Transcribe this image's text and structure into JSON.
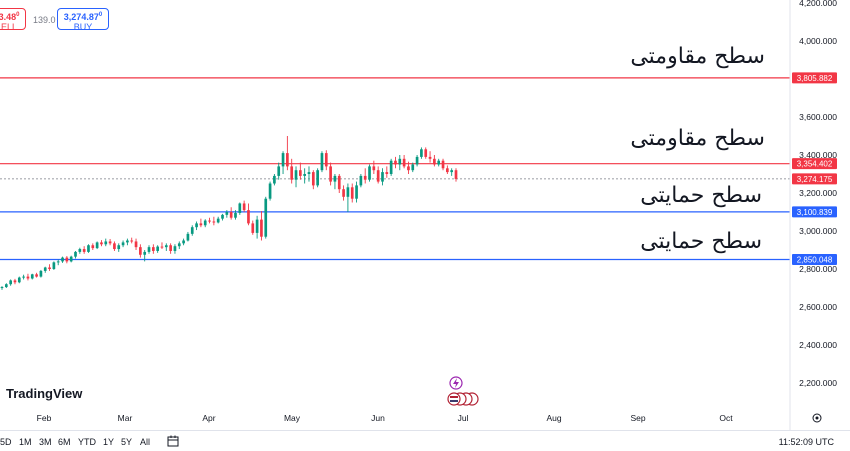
{
  "topbar": {
    "sell_value": "3.48",
    "sell_sup": "0",
    "sell_label": "ELL",
    "spread": "139.0",
    "buy_value": "3,274.87",
    "buy_sup": "0",
    "buy_label": "BUY"
  },
  "annotations": {
    "resistance_1": "سطح مقاومتی",
    "resistance_2": "سطح مقاومتی",
    "support_1": "سطح حمایتی",
    "support_2": "سطح حمایتی"
  },
  "logo": "TradingView",
  "bottombar": {
    "ranges": [
      "5D",
      "1M",
      "3M",
      "6M",
      "YTD",
      "1Y",
      "5Y",
      "All"
    ],
    "clock": "11:52:09 UTC"
  },
  "colors": {
    "up": "#089981",
    "down": "#f23645",
    "resistance": "#f23645",
    "support": "#2962ff",
    "current": "#f23645"
  },
  "chart_data": {
    "type": "candlestick",
    "ylim": [
      2150,
      4250
    ],
    "y_ticks": [
      "2,200.000",
      "2,400.000",
      "2,600.000",
      "2,800.000",
      "3,000.000",
      "3,200.000",
      "3,400.000",
      "3,600.000",
      "3,800.000",
      "4,000.000",
      "4,200.000"
    ],
    "y_tick_values": [
      2200,
      2400,
      2600,
      2800,
      3000,
      3200,
      3400,
      3600,
      3800,
      4000,
      4200
    ],
    "x_labels": [
      "Feb",
      "Mar",
      "Apr",
      "May",
      "Jun",
      "Jul",
      "Aug",
      "Sep",
      "Oct"
    ],
    "levels": [
      {
        "name": "resistance-2",
        "value": 3805.882,
        "label": "3,805.882",
        "kind": "resistance"
      },
      {
        "name": "resistance-1",
        "value": 3354.402,
        "label": "3,354.402",
        "kind": "resistance"
      },
      {
        "name": "current-price",
        "value": 3274.175,
        "label": "3,274.175",
        "kind": "current"
      },
      {
        "name": "support-1",
        "value": 3100.839,
        "label": "3,100.839",
        "kind": "support"
      },
      {
        "name": "support-2",
        "value": 2850.048,
        "label": "2,850.048",
        "kind": "support"
      }
    ],
    "candles": [
      [
        2700,
        2710,
        2690,
        2705
      ],
      [
        2705,
        2725,
        2700,
        2720
      ],
      [
        2720,
        2745,
        2712,
        2740
      ],
      [
        2740,
        2748,
        2720,
        2730
      ],
      [
        2730,
        2760,
        2725,
        2755
      ],
      [
        2755,
        2770,
        2745,
        2760
      ],
      [
        2760,
        2775,
        2740,
        2750
      ],
      [
        2750,
        2775,
        2745,
        2772
      ],
      [
        2772,
        2780,
        2755,
        2760
      ],
      [
        2760,
        2795,
        2755,
        2790
      ],
      [
        2790,
        2812,
        2780,
        2808
      ],
      [
        2808,
        2825,
        2790,
        2800
      ],
      [
        2800,
        2840,
        2795,
        2835
      ],
      [
        2835,
        2850,
        2820,
        2840
      ],
      [
        2840,
        2865,
        2832,
        2860
      ],
      [
        2860,
        2868,
        2830,
        2840
      ],
      [
        2840,
        2870,
        2835,
        2865
      ],
      [
        2865,
        2895,
        2855,
        2890
      ],
      [
        2890,
        2912,
        2880,
        2905
      ],
      [
        2905,
        2920,
        2880,
        2890
      ],
      [
        2890,
        2930,
        2885,
        2925
      ],
      [
        2925,
        2935,
        2900,
        2910
      ],
      [
        2910,
        2945,
        2905,
        2940
      ],
      [
        2940,
        2952,
        2920,
        2930
      ],
      [
        2930,
        2960,
        2920,
        2945
      ],
      [
        2945,
        2958,
        2925,
        2935
      ],
      [
        2935,
        2945,
        2895,
        2905
      ],
      [
        2905,
        2935,
        2890,
        2925
      ],
      [
        2925,
        2950,
        2915,
        2940
      ],
      [
        2940,
        2960,
        2925,
        2950
      ],
      [
        2950,
        2965,
        2935,
        2945
      ],
      [
        2945,
        2960,
        2900,
        2915
      ],
      [
        2915,
        2930,
        2860,
        2875
      ],
      [
        2875,
        2900,
        2840,
        2890
      ],
      [
        2890,
        2925,
        2880,
        2915
      ],
      [
        2915,
        2930,
        2880,
        2895
      ],
      [
        2895,
        2925,
        2885,
        2918
      ],
      [
        2918,
        2940,
        2905,
        2915
      ],
      [
        2915,
        2935,
        2895,
        2925
      ],
      [
        2925,
        2935,
        2880,
        2895
      ],
      [
        2895,
        2930,
        2880,
        2920
      ],
      [
        2920,
        2945,
        2905,
        2935
      ],
      [
        2935,
        2960,
        2925,
        2950
      ],
      [
        2950,
        2995,
        2945,
        2985
      ],
      [
        2985,
        3030,
        2975,
        3020
      ],
      [
        3020,
        3050,
        3005,
        3040
      ],
      [
        3040,
        3065,
        3020,
        3030
      ],
      [
        3030,
        3062,
        3020,
        3055
      ],
      [
        3055,
        3070,
        3040,
        3050
      ],
      [
        3050,
        3075,
        3030,
        3045
      ],
      [
        3045,
        3075,
        3040,
        3065
      ],
      [
        3065,
        3090,
        3055,
        3085
      ],
      [
        3085,
        3110,
        3070,
        3100
      ],
      [
        3100,
        3125,
        3060,
        3070
      ],
      [
        3070,
        3110,
        3060,
        3095
      ],
      [
        3095,
        3150,
        3085,
        3145
      ],
      [
        3145,
        3160,
        3100,
        3110
      ],
      [
        3110,
        3145,
        3030,
        3040
      ],
      [
        3040,
        3055,
        2980,
        2990
      ],
      [
        2990,
        3080,
        2960,
        3060
      ],
      [
        3060,
        3105,
        2950,
        2970
      ],
      [
        2970,
        3180,
        2960,
        3170
      ],
      [
        3170,
        3260,
        3160,
        3250
      ],
      [
        3250,
        3300,
        3240,
        3290
      ],
      [
        3290,
        3360,
        3270,
        3340
      ],
      [
        3340,
        3420,
        3300,
        3410
      ],
      [
        3410,
        3500,
        3320,
        3340
      ],
      [
        3340,
        3380,
        3250,
        3270
      ],
      [
        3270,
        3340,
        3230,
        3320
      ],
      [
        3320,
        3360,
        3270,
        3290
      ],
      [
        3290,
        3330,
        3250,
        3300
      ],
      [
        3300,
        3340,
        3260,
        3310
      ],
      [
        3310,
        3320,
        3220,
        3240
      ],
      [
        3240,
        3330,
        3230,
        3320
      ],
      [
        3320,
        3420,
        3310,
        3410
      ],
      [
        3410,
        3425,
        3320,
        3340
      ],
      [
        3340,
        3360,
        3240,
        3260
      ],
      [
        3260,
        3300,
        3220,
        3290
      ],
      [
        3290,
        3300,
        3200,
        3220
      ],
      [
        3220,
        3240,
        3160,
        3180
      ],
      [
        3180,
        3250,
        3100,
        3230
      ],
      [
        3230,
        3250,
        3150,
        3170
      ],
      [
        3170,
        3260,
        3150,
        3240
      ],
      [
        3240,
        3300,
        3230,
        3290
      ],
      [
        3290,
        3330,
        3250,
        3270
      ],
      [
        3270,
        3350,
        3260,
        3340
      ],
      [
        3340,
        3370,
        3300,
        3320
      ],
      [
        3320,
        3340,
        3250,
        3260
      ],
      [
        3260,
        3330,
        3240,
        3310
      ],
      [
        3310,
        3340,
        3280,
        3300
      ],
      [
        3300,
        3380,
        3290,
        3370
      ],
      [
        3370,
        3390,
        3330,
        3350
      ],
      [
        3350,
        3400,
        3320,
        3380
      ],
      [
        3380,
        3400,
        3330,
        3340
      ],
      [
        3340,
        3365,
        3300,
        3320
      ],
      [
        3320,
        3360,
        3310,
        3350
      ],
      [
        3350,
        3400,
        3340,
        3390
      ],
      [
        3390,
        3440,
        3380,
        3430
      ],
      [
        3430,
        3440,
        3380,
        3390
      ],
      [
        3390,
        3420,
        3360,
        3380
      ],
      [
        3380,
        3400,
        3340,
        3350
      ],
      [
        3350,
        3380,
        3340,
        3370
      ],
      [
        3370,
        3380,
        3320,
        3330
      ],
      [
        3330,
        3345,
        3300,
        3310
      ],
      [
        3310,
        3330,
        3290,
        3320
      ],
      [
        3320,
        3330,
        3260,
        3274
      ]
    ]
  }
}
